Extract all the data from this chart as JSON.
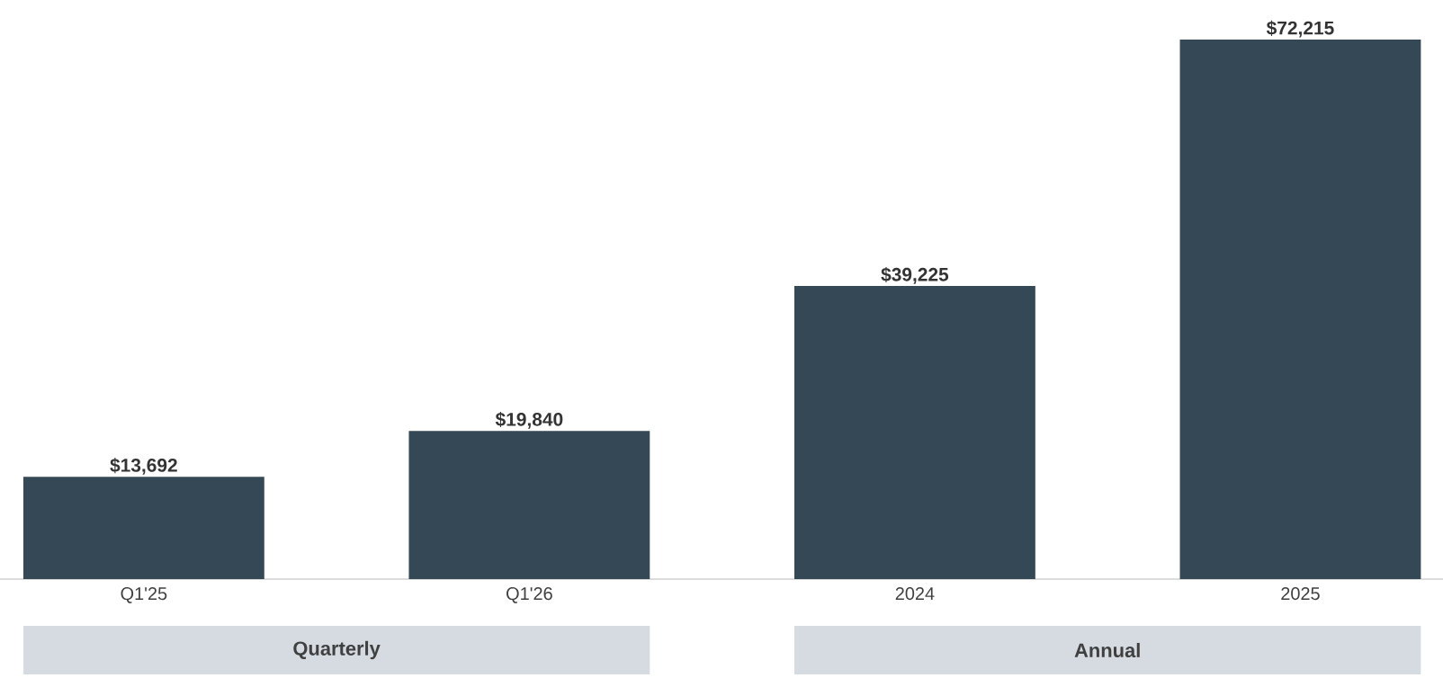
{
  "chart_data": {
    "type": "bar",
    "categories": [
      "Q1'25",
      "Q1'26",
      "2024",
      "2025"
    ],
    "values": [
      13692,
      19840,
      39225,
      72215
    ],
    "value_labels": [
      "$13,692",
      "$19,840",
      "$39,225",
      "$72,215"
    ],
    "color": "#344955",
    "annotations": [
      "Quarterly",
      "Annual"
    ]
  }
}
